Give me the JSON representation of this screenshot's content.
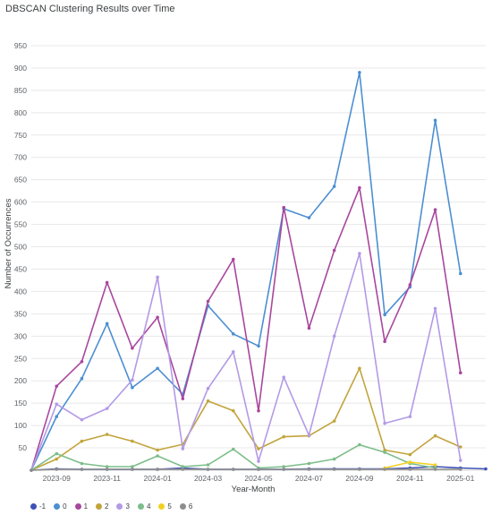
{
  "chart_data": {
    "type": "line",
    "title": "DBSCAN Clustering Results over Time",
    "xlabel": "Year-Month",
    "ylabel": "Number of Occurrences",
    "ylim": [
      0,
      950
    ],
    "yticks": [
      50,
      100,
      150,
      200,
      250,
      300,
      350,
      400,
      450,
      500,
      550,
      600,
      650,
      700,
      750,
      800,
      850,
      900,
      950
    ],
    "x_ticks": [
      "2023-09",
      "2023-11",
      "2024-01",
      "2024-03",
      "2024-05",
      "2024-07",
      "2024-09",
      "2024-11",
      "2025-01"
    ],
    "x": [
      "2023-08",
      "2023-09",
      "2023-10",
      "2023-11",
      "2023-12",
      "2024-01",
      "2024-02",
      "2024-03",
      "2024-04",
      "2024-05",
      "2024-06",
      "2024-07",
      "2024-08",
      "2024-09",
      "2024-10",
      "2024-11",
      "2024-12",
      "2025-01",
      "2025-02"
    ],
    "grid": true,
    "legend_position": "bottom",
    "series": [
      {
        "name": "-1",
        "color": "#3f51b5",
        "values": [
          0,
          3,
          2,
          2,
          2,
          2,
          5,
          2,
          2,
          2,
          2,
          3,
          3,
          3,
          3,
          5,
          8,
          5,
          3
        ]
      },
      {
        "name": "0",
        "color": "#4c8fd2",
        "values": [
          0,
          120,
          205,
          328,
          185,
          228,
          170,
          368,
          305,
          278,
          585,
          565,
          635,
          890,
          348,
          410,
          783,
          440,
          null
        ]
      },
      {
        "name": "1",
        "color": "#a8479e",
        "values": [
          0,
          188,
          243,
          420,
          273,
          342,
          160,
          378,
          472,
          133,
          588,
          318,
          492,
          632,
          288,
          415,
          583,
          218,
          null
        ]
      },
      {
        "name": "2",
        "color": "#c2a43c",
        "values": [
          0,
          25,
          65,
          80,
          65,
          45,
          58,
          155,
          133,
          48,
          75,
          77,
          110,
          228,
          45,
          35,
          77,
          52,
          null
        ]
      },
      {
        "name": "3",
        "color": "#b39ae6",
        "values": [
          0,
          148,
          113,
          138,
          202,
          432,
          48,
          183,
          265,
          20,
          208,
          78,
          300,
          485,
          105,
          120,
          362,
          22,
          null
        ]
      },
      {
        "name": "4",
        "color": "#7dbd8a",
        "values": [
          0,
          37,
          15,
          8,
          8,
          32,
          8,
          12,
          47,
          5,
          8,
          15,
          25,
          57,
          40,
          15,
          5,
          null,
          null
        ]
      },
      {
        "name": "5",
        "color": "#f2d022",
        "values": [
          null,
          null,
          null,
          null,
          null,
          null,
          null,
          null,
          null,
          null,
          null,
          null,
          null,
          null,
          5,
          18,
          12,
          null,
          null
        ]
      },
      {
        "name": "6",
        "color": "#8d8d8d",
        "values": [
          0,
          2,
          2,
          2,
          2,
          2,
          2,
          2,
          2,
          2,
          2,
          2,
          2,
          2,
          2,
          2,
          2,
          2,
          null
        ]
      }
    ]
  }
}
